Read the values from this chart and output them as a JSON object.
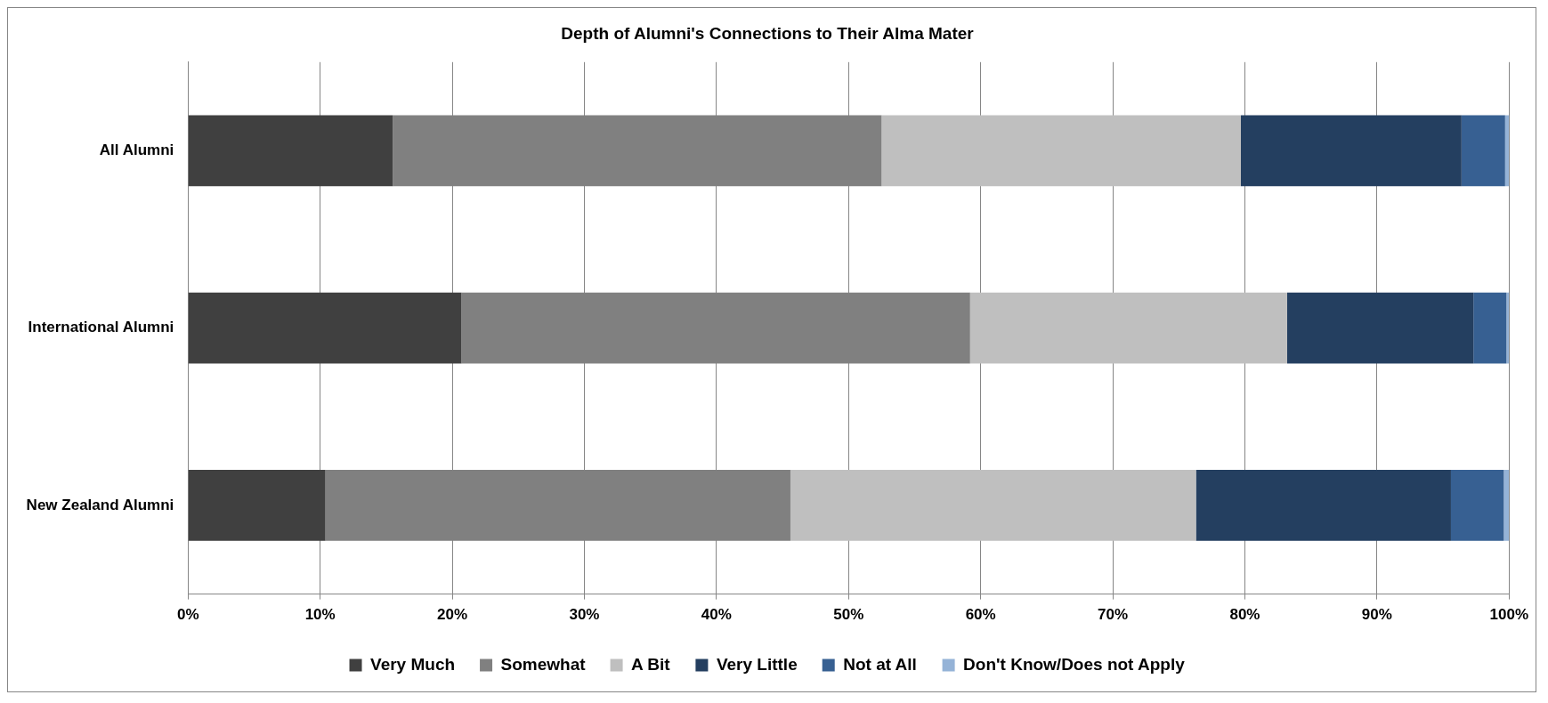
{
  "chart_data": {
    "type": "bar",
    "title": "Depth of Alumni's Connections to Their Alma Mater",
    "orientation": "horizontal",
    "stacked": true,
    "categories": [
      "All Alumni",
      "International Alumni",
      "New Zealand Alumni"
    ],
    "series": [
      {
        "name": "Very Much",
        "color": "#404040",
        "values": [
          15.5,
          20.7,
          10.4
        ]
      },
      {
        "name": "Somewhat",
        "color": "#808080",
        "values": [
          37.0,
          38.5,
          35.2
        ]
      },
      {
        "name": "A Bit",
        "color": "#bfbfbf",
        "values": [
          27.2,
          24.0,
          30.7
        ]
      },
      {
        "name": "Very Little",
        "color": "#243f60",
        "values": [
          16.7,
          14.1,
          19.3
        ]
      },
      {
        "name": "Not at All",
        "color": "#376092",
        "values": [
          3.3,
          2.5,
          4.0
        ]
      },
      {
        "name": "Don't Know/Does not Apply",
        "color": "#95b3d7",
        "values": [
          0.3,
          0.2,
          0.4
        ]
      }
    ],
    "xlim": [
      0,
      100
    ],
    "xticks": [
      {
        "value": 0,
        "label": "0%"
      },
      {
        "value": 10,
        "label": "10%"
      },
      {
        "value": 20,
        "label": "20%"
      },
      {
        "value": 30,
        "label": "30%"
      },
      {
        "value": 40,
        "label": "40%"
      },
      {
        "value": 50,
        "label": "50%"
      },
      {
        "value": 60,
        "label": "60%"
      },
      {
        "value": 70,
        "label": "70%"
      },
      {
        "value": 80,
        "label": "80%"
      },
      {
        "value": 90,
        "label": "90%"
      },
      {
        "value": 100,
        "label": "100%"
      }
    ],
    "grid": "x",
    "legend": "bottom"
  }
}
